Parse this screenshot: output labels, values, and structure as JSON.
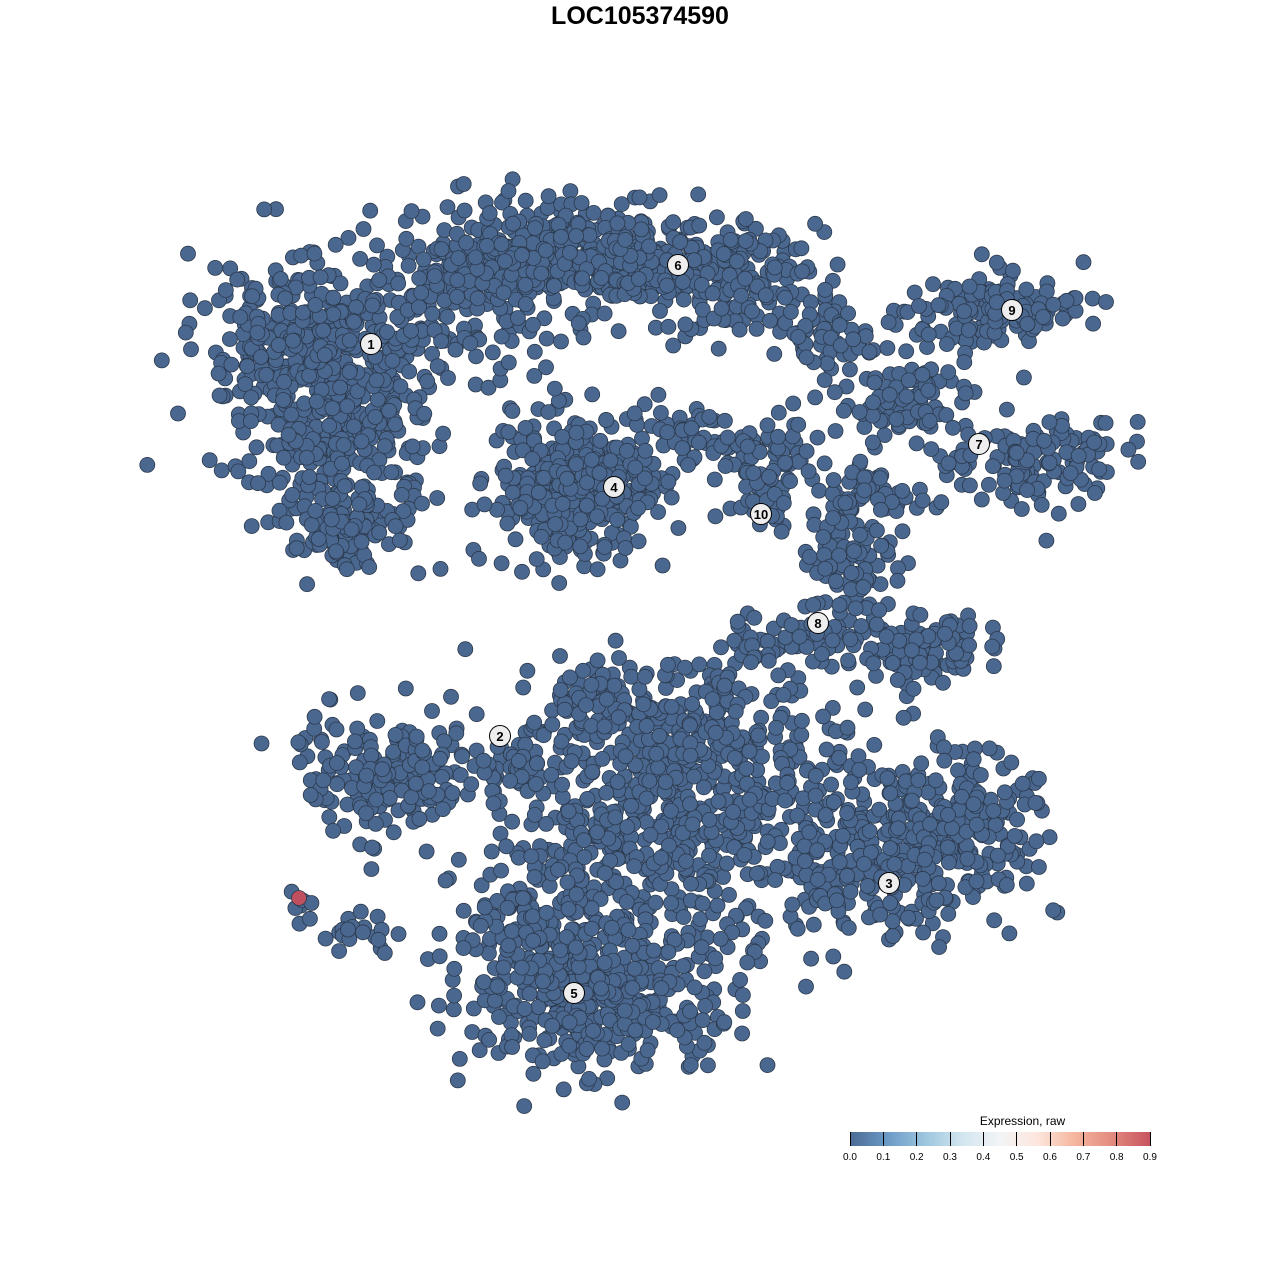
{
  "title": "LOC105374590",
  "chart_data": {
    "type": "scatter",
    "title": "LOC105374590",
    "xlabel": "",
    "ylabel": "",
    "axes_visible": false,
    "grid": false,
    "point_color_low": "#4a6790",
    "point_color_high": "#c0505f",
    "cluster_labels": [
      "1",
      "2",
      "3",
      "4",
      "5",
      "6",
      "7",
      "8",
      "9",
      "10"
    ],
    "expression_summary": {
      "all_cells_value": 0.0,
      "highlighted_cell_value": 0.9,
      "highlighted_cell_count": 1
    },
    "legend": {
      "title": "Expression, raw",
      "placement": "bottom-right",
      "ticks": [
        "0.0",
        "0.1",
        "0.2",
        "0.3",
        "0.4",
        "0.5",
        "0.6",
        "0.7",
        "0.8",
        "0.9"
      ],
      "range": [
        0.0,
        0.9
      ],
      "colors": [
        "#4a6b94",
        "#6b9ac6",
        "#9cc6de",
        "#d2e6ef",
        "#f3f4f6",
        "#fde6dd",
        "#f5b59d",
        "#e28a7e",
        "#c6535f"
      ]
    }
  }
}
